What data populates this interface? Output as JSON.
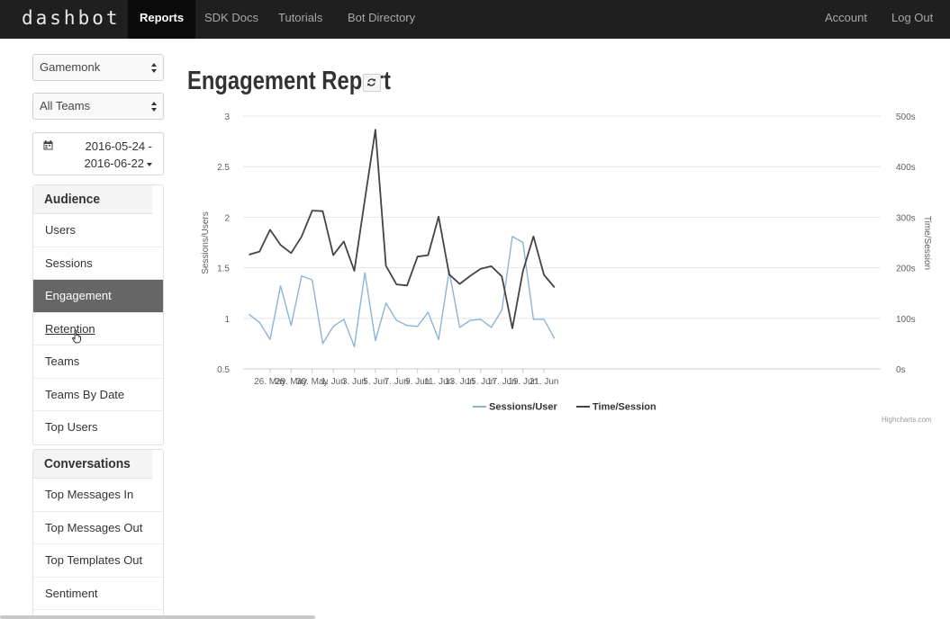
{
  "app": {
    "brand": "dashbot",
    "nav": {
      "reports": "Reports",
      "sdk_docs": "SDK Docs",
      "tutorials": "Tutorials",
      "bot_directory": "Bot Directory",
      "account": "Account",
      "log_out": "Log Out",
      "active": "Reports"
    }
  },
  "sidebar": {
    "bot_select": "Gamemonk",
    "team_select": "All Teams",
    "date_start": "2016-05-24 -",
    "date_end": "2016-06-22",
    "audience": {
      "heading": "Audience",
      "items": [
        "Users",
        "Sessions",
        "Engagement",
        "Retention",
        "Teams",
        "Teams By Date",
        "Top Users"
      ],
      "active": "Engagement",
      "hovered": "Retention"
    },
    "conversations": {
      "heading": "Conversations",
      "items": [
        "Top Messages In",
        "Top Messages Out",
        "Top Templates Out",
        "Sentiment"
      ]
    }
  },
  "main": {
    "title": "Engagement Report",
    "credit": "Highcharts.com"
  },
  "chart_data": {
    "type": "line",
    "title": "",
    "ylabel": "Sessions/Users",
    "y2label": "Time/Session",
    "ylim": [
      0.5,
      3
    ],
    "y2lim": [
      0,
      500
    ],
    "y_ticks": [
      "0.5",
      "1",
      "1.5",
      "2",
      "2.5",
      "3"
    ],
    "y2_ticks": [
      "0s",
      "100s",
      "200s",
      "300s",
      "400s",
      "500s"
    ],
    "x_ticks": [
      "26. May",
      "28. May",
      "30. May",
      "1. Jun",
      "3. Jun",
      "5. Jun",
      "7. Jun",
      "9. Jun",
      "11. Jun",
      "13. Jun",
      "15. Jun",
      "17. Jun",
      "19. Jun",
      "21. Jun"
    ],
    "x": [
      "2016-05-24",
      "2016-05-25",
      "2016-05-26",
      "2016-05-27",
      "2016-05-28",
      "2016-05-29",
      "2016-05-30",
      "2016-05-31",
      "2016-06-01",
      "2016-06-02",
      "2016-06-03",
      "2016-06-04",
      "2016-06-05",
      "2016-06-06",
      "2016-06-07",
      "2016-06-08",
      "2016-06-09",
      "2016-06-10",
      "2016-06-11",
      "2016-06-12",
      "2016-06-13",
      "2016-06-14",
      "2016-06-15",
      "2016-06-16",
      "2016-06-17",
      "2016-06-18",
      "2016-06-19",
      "2016-06-20",
      "2016-06-21",
      "2016-06-22"
    ],
    "series": [
      {
        "name": "Sessions/User",
        "axis": "left",
        "color": "#8ab4d8",
        "values": [
          1.04,
          0.96,
          0.79,
          1.32,
          0.93,
          1.42,
          1.38,
          0.75,
          0.92,
          0.99,
          0.72,
          1.45,
          0.78,
          1.15,
          0.98,
          0.93,
          0.92,
          1.06,
          0.79,
          1.47,
          0.91,
          0.98,
          0.99,
          0.91,
          1.08,
          1.81,
          1.75,
          0.99,
          0.99,
          0.8
        ]
      },
      {
        "name": "Time/Session",
        "axis": "right",
        "color": "#434348",
        "values": [
          226,
          232,
          275,
          245,
          229,
          262,
          313,
          312,
          225,
          252,
          194,
          335,
          473,
          204,
          167,
          165,
          222,
          225,
          301,
          187,
          168,
          184,
          198,
          203,
          183,
          80,
          193,
          262,
          186,
          161
        ]
      }
    ],
    "legend": "bottom-center",
    "grid": true
  },
  "colors": {
    "navbar": "#1f1f1f",
    "active_nav": "#0b0b0b",
    "active_item": "#666666",
    "series_light": "#8ab4d8",
    "series_dark": "#434348"
  }
}
